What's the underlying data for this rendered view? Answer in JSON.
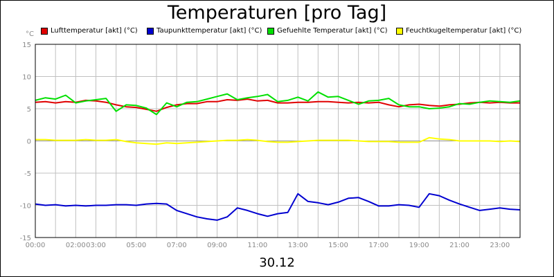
{
  "chart_data": {
    "type": "line",
    "title": "Temperaturen [pro Tag]",
    "ylabel": "°C",
    "xlabel": "30.12",
    "ylim": [
      -15,
      15
    ],
    "yticks": [
      15,
      10,
      5,
      0,
      -5,
      -10,
      -15
    ],
    "xlim": [
      0,
      24
    ],
    "xtick_labels": [
      {
        "t": 0,
        "label": "00:00"
      },
      {
        "t": 2,
        "label": "02:00"
      },
      {
        "t": 3,
        "label": "03:00"
      },
      {
        "t": 5,
        "label": "05:00"
      },
      {
        "t": 7,
        "label": "07:00"
      },
      {
        "t": 9,
        "label": "09:00"
      },
      {
        "t": 11,
        "label": "11:00"
      },
      {
        "t": 13,
        "label": "13:00"
      },
      {
        "t": 15,
        "label": "15:00"
      },
      {
        "t": 17,
        "label": "17:00"
      },
      {
        "t": 19,
        "label": "19:00"
      },
      {
        "t": 21,
        "label": "21:00"
      },
      {
        "t": 23,
        "label": "23:00"
      }
    ],
    "grid": true,
    "legend_position": "top",
    "series": [
      {
        "name": "Lufttemperatur [akt] (°C)",
        "color": "#e00000",
        "x": [
          0,
          0.5,
          1,
          1.5,
          2,
          2.5,
          3,
          3.5,
          4,
          4.5,
          5,
          5.5,
          6,
          6.5,
          7,
          7.5,
          8,
          8.5,
          9,
          9.5,
          10,
          10.5,
          11,
          11.5,
          12,
          12.5,
          13,
          13.5,
          14,
          14.5,
          15,
          15.5,
          16,
          16.5,
          17,
          17.5,
          18,
          18.5,
          19,
          19.5,
          20,
          20.5,
          21,
          21.5,
          22,
          22.5,
          23,
          23.5,
          24
        ],
        "y": [
          6,
          6.1,
          5.9,
          6.1,
          6,
          6.3,
          6.2,
          6,
          5.6,
          5.3,
          5.2,
          4.9,
          4.6,
          5.2,
          5.6,
          5.8,
          5.8,
          6.1,
          6.1,
          6.4,
          6.3,
          6.5,
          6.2,
          6.3,
          5.9,
          5.9,
          6,
          6,
          6.1,
          6.1,
          6,
          5.9,
          6,
          5.9,
          6,
          5.6,
          5.3,
          5.6,
          5.7,
          5.5,
          5.4,
          5.6,
          5.7,
          5.9,
          6,
          5.9,
          6,
          5.9,
          5.9
        ]
      },
      {
        "name": "Taupunkttemperatur [akt] (°C)",
        "color": "#0000d0",
        "x": [
          0,
          0.5,
          1,
          1.5,
          2,
          2.5,
          3,
          3.5,
          4,
          4.5,
          5,
          5.5,
          6,
          6.5,
          7,
          7.5,
          8,
          8.5,
          9,
          9.5,
          10,
          10.5,
          11,
          11.5,
          12,
          12.5,
          13,
          13.5,
          14,
          14.5,
          15,
          15.5,
          16,
          16.5,
          17,
          17.5,
          18,
          18.5,
          19,
          19.5,
          20,
          20.5,
          21,
          21.5,
          22,
          22.5,
          23,
          23.5,
          24
        ],
        "y": [
          -9.8,
          -10,
          -9.9,
          -10.1,
          -10,
          -10.1,
          -10,
          -10,
          -9.9,
          -9.9,
          -10,
          -9.8,
          -9.7,
          -9.8,
          -10.8,
          -11.3,
          -11.8,
          -12.1,
          -12.3,
          -11.8,
          -10.4,
          -10.8,
          -11.3,
          -11.7,
          -11.3,
          -11.1,
          -8.2,
          -9.4,
          -9.6,
          -9.9,
          -9.5,
          -8.9,
          -8.8,
          -9.4,
          -10.1,
          -10.1,
          -9.9,
          -10,
          -10.3,
          -8.2,
          -8.5,
          -9.2,
          -9.8,
          -10.3,
          -10.8,
          -10.6,
          -10.4,
          -10.6,
          -10.7
        ]
      },
      {
        "name": "Gefuehlte Temperatur [akt] (°C)",
        "color": "#00e000",
        "x": [
          0,
          0.5,
          1,
          1.5,
          2,
          2.5,
          3,
          3.5,
          4,
          4.5,
          5,
          5.5,
          6,
          6.5,
          7,
          7.5,
          8,
          8.5,
          9,
          9.5,
          10,
          10.5,
          11,
          11.5,
          12,
          12.5,
          13,
          13.5,
          14,
          14.5,
          15,
          15.5,
          16,
          16.5,
          17,
          17.5,
          18,
          18.5,
          19,
          19.5,
          20,
          20.5,
          21,
          21.5,
          22,
          22.5,
          23,
          23.5,
          24
        ],
        "y": [
          6.3,
          6.7,
          6.5,
          7.1,
          5.9,
          6.2,
          6.4,
          6.6,
          4.6,
          5.6,
          5.5,
          5.1,
          4.1,
          5.9,
          5.3,
          6,
          6.1,
          6.5,
          6.9,
          7.3,
          6.4,
          6.7,
          6.9,
          7.2,
          6.1,
          6.3,
          6.8,
          6.2,
          7.6,
          6.8,
          6.9,
          6.3,
          5.7,
          6.2,
          6.3,
          6.6,
          5.6,
          5.3,
          5.3,
          5,
          5.1,
          5.3,
          5.8,
          5.7,
          6,
          6.2,
          6.1,
          6,
          6.2
        ]
      },
      {
        "name": "Feuchtkugeltemperatur [akt] (°C)",
        "color": "#ffff00",
        "x": [
          0,
          0.5,
          1,
          1.5,
          2,
          2.5,
          3,
          3.5,
          4,
          4.5,
          5,
          5.5,
          6,
          6.5,
          7,
          7.5,
          8,
          8.5,
          9,
          9.5,
          10,
          10.5,
          11,
          11.5,
          12,
          12.5,
          13,
          13.5,
          14,
          14.5,
          15,
          15.5,
          16,
          16.5,
          17,
          17.5,
          18,
          18.5,
          19,
          19.5,
          20,
          20.5,
          21,
          21.5,
          22,
          22.5,
          23,
          23.5,
          24
        ],
        "y": [
          0.2,
          0.2,
          0.1,
          0.1,
          0.1,
          0.2,
          0.1,
          0.1,
          0.2,
          -0.1,
          -0.3,
          -0.4,
          -0.5,
          -0.3,
          -0.4,
          -0.3,
          -0.2,
          -0.1,
          0,
          0.1,
          0.1,
          0.2,
          0.1,
          -0.1,
          -0.2,
          -0.2,
          -0.1,
          0,
          0.1,
          0.1,
          0.1,
          0.1,
          0,
          -0.1,
          -0.1,
          -0.1,
          -0.2,
          -0.2,
          -0.2,
          0.5,
          0.3,
          0.2,
          0,
          0,
          0,
          0,
          -0.1,
          0,
          -0.1
        ]
      }
    ]
  }
}
